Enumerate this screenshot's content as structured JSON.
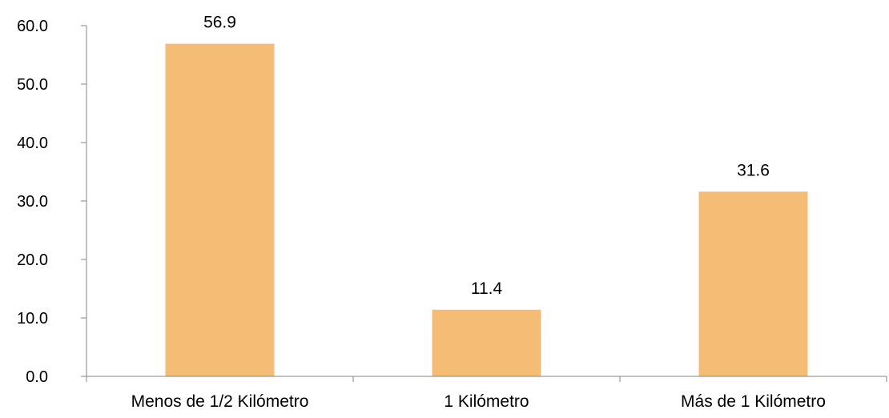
{
  "chart_data": {
    "type": "bar",
    "categories": [
      "Menos de 1/2 Kilómetro",
      "1 Kilómetro",
      "Más de 1 Kilómetro"
    ],
    "values": [
      56.9,
      11.4,
      31.6
    ],
    "data_labels": [
      "56.9",
      "11.4",
      "31.6"
    ],
    "title": "",
    "xlabel": "",
    "ylabel": "",
    "ylim": [
      0,
      60
    ],
    "y_ticks": [
      0,
      10,
      20,
      30,
      40,
      50,
      60
    ],
    "y_tick_labels": [
      "0.0",
      "10.0",
      "20.0",
      "30.0",
      "40.0",
      "50.0",
      "60.0"
    ],
    "grid": false,
    "legend": "none",
    "colors": {
      "bar": "#F5BC76",
      "axis": "#868686",
      "text": "#000000"
    }
  }
}
